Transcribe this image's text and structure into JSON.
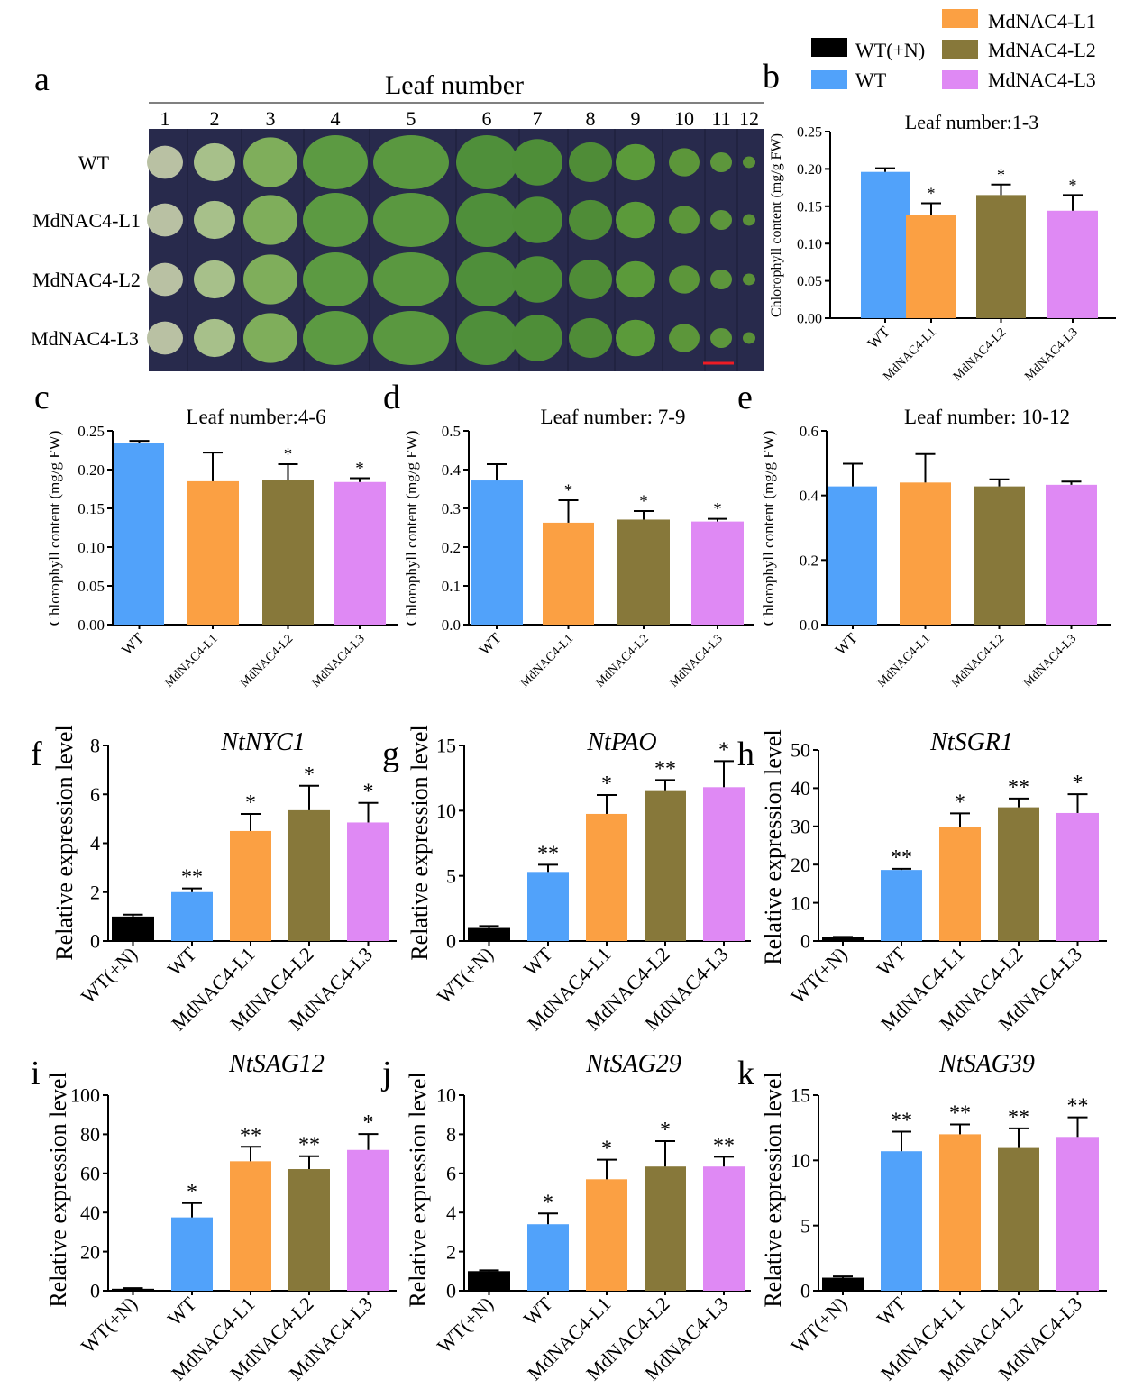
{
  "colors": {
    "WT(+N)": "#000000",
    "WT": "#51a2fa",
    "MdNAC4-L1": "#fba043",
    "MdNAC4-L2": "#87783a",
    "MdNAC4-L3": "#df89f4",
    "scalebar": "#ee1c25",
    "photo_bg": "#282a4c"
  },
  "legend": {
    "entries": [
      "WT(+N)",
      "WT",
      "MdNAC4-L1",
      "MdNAC4-L2",
      "MdNAC4-L3"
    ]
  },
  "photo_panel": {
    "label": "a",
    "title": "Leaf number",
    "leaf_numbers": [
      "1",
      "2",
      "3",
      "4",
      "5",
      "6",
      "7",
      "8",
      "9",
      "10",
      "11",
      "12"
    ],
    "rows": [
      "WT",
      "MdNAC4-L1",
      "MdNAC4-L2",
      "MdNAC4-L3"
    ]
  },
  "chart_data": [
    {
      "panel": "b",
      "type": "bar",
      "title": "Leaf number:1-3",
      "title_italic": false,
      "ylabel": "Chlorophyll content (mg/g FW)",
      "categories": [
        "WT",
        "MdNAC4-L1",
        "MdNAC4-L2",
        "MdNAC4-L3"
      ],
      "values": [
        0.196,
        0.138,
        0.165,
        0.144
      ],
      "errors": [
        0.005,
        0.016,
        0.014,
        0.021
      ],
      "significance": [
        "",
        "*",
        "*",
        "*"
      ],
      "ylim": [
        0,
        0.25
      ],
      "yticks": [
        "0.00",
        "0.05",
        "0.10",
        "0.15",
        "0.20",
        "0.25"
      ],
      "tick_style": "small"
    },
    {
      "panel": "c",
      "type": "bar",
      "title": "Leaf number:4-6",
      "title_italic": false,
      "ylabel": "Chlorophyll content (mg/g FW)",
      "categories": [
        "WT",
        "MdNAC4-L1",
        "MdNAC4-L2",
        "MdNAC4-L3"
      ],
      "values": [
        0.234,
        0.185,
        0.187,
        0.184
      ],
      "errors": [
        0.003,
        0.037,
        0.02,
        0.005
      ],
      "significance": [
        "",
        "",
        "*",
        "*"
      ],
      "ylim": [
        0,
        0.25
      ],
      "yticks": [
        "0.00",
        "0.05",
        "0.10",
        "0.15",
        "0.20",
        "0.25"
      ],
      "tick_style": "small"
    },
    {
      "panel": "d",
      "type": "bar",
      "title": "Leaf number: 7-9",
      "title_italic": false,
      "ylabel": "Chlorophyll content (mg/g FW)",
      "categories": [
        "WT",
        "MdNAC4-L1",
        "MdNAC4-L2",
        "MdNAC4-L3"
      ],
      "values": [
        0.372,
        0.263,
        0.271,
        0.266
      ],
      "errors": [
        0.042,
        0.058,
        0.022,
        0.007
      ],
      "significance": [
        "",
        "*",
        "*",
        "*"
      ],
      "ylim": [
        0,
        0.5
      ],
      "yticks": [
        "0.0",
        "0.1",
        "0.2",
        "0.3",
        "0.4",
        "0.5"
      ],
      "tick_style": "small"
    },
    {
      "panel": "e",
      "type": "bar",
      "title": "Leaf number: 10-12",
      "title_italic": false,
      "ylabel": "Chlorophyll content (mg/g FW)",
      "categories": [
        "WT",
        "MdNAC4-L1",
        "MdNAC4-L2",
        "MdNAC4-L3"
      ],
      "values": [
        0.428,
        0.44,
        0.428,
        0.433
      ],
      "errors": [
        0.07,
        0.088,
        0.022,
        0.01
      ],
      "significance": [
        "",
        "",
        "",
        ""
      ],
      "ylim": [
        0,
        0.6
      ],
      "yticks": [
        "0.0",
        "0.2",
        "0.4",
        "0.6"
      ],
      "tick_style": "small"
    },
    {
      "panel": "f",
      "type": "bar",
      "title": "NtNYC1",
      "title_italic": true,
      "ylabel": "Relative expression level",
      "categories": [
        "WT(+N)",
        "WT",
        "MdNAC4-L1",
        "MdNAC4-L2",
        "MdNAC4-L3"
      ],
      "values": [
        1.0,
        2.0,
        4.5,
        5.35,
        4.85
      ],
      "errors": [
        0.08,
        0.15,
        0.7,
        1.0,
        0.8
      ],
      "significance": [
        "",
        "**",
        "*",
        "*",
        "*"
      ],
      "ylim": [
        0,
        8
      ],
      "yticks": [
        "0",
        "2",
        "4",
        "6",
        "8"
      ],
      "tick_style": "large"
    },
    {
      "panel": "g",
      "type": "bar",
      "title": "NtPAO",
      "title_italic": true,
      "ylabel": "Relative expression level",
      "categories": [
        "WT(+N)",
        "WT",
        "MdNAC4-L1",
        "MdNAC4-L2",
        "MdNAC4-L3"
      ],
      "values": [
        1.0,
        5.3,
        9.75,
        11.5,
        11.8
      ],
      "errors": [
        0.15,
        0.55,
        1.45,
        0.85,
        2.0
      ],
      "significance": [
        "",
        "**",
        "*",
        "**",
        "*"
      ],
      "ylim": [
        0,
        15
      ],
      "yticks": [
        "0",
        "5",
        "10",
        "15"
      ],
      "tick_style": "large"
    },
    {
      "panel": "h",
      "type": "bar",
      "title": "NtSGR1",
      "title_italic": true,
      "ylabel": "Relative expression level",
      "categories": [
        "WT(+N)",
        "WT",
        "MdNAC4-L1",
        "MdNAC4-L2",
        "MdNAC4-L3"
      ],
      "values": [
        1.0,
        18.6,
        29.8,
        35.0,
        33.5
      ],
      "errors": [
        0.1,
        0.3,
        3.6,
        2.3,
        4.9
      ],
      "significance": [
        "",
        "**",
        "*",
        "**",
        "*"
      ],
      "ylim": [
        0,
        50
      ],
      "yticks": [
        "0",
        "10",
        "20",
        "30",
        "40",
        "50"
      ],
      "tick_style": "large"
    },
    {
      "panel": "i",
      "type": "bar",
      "title": "NtSAG12",
      "title_italic": true,
      "ylabel": "Relative expression level",
      "categories": [
        "WT(+N)",
        "WT",
        "MdNAC4-L1",
        "MdNAC4-L2",
        "MdNAC4-L3"
      ],
      "values": [
        1.0,
        37.5,
        66.2,
        62.2,
        72.0
      ],
      "errors": [
        0.3,
        7.3,
        7.4,
        6.6,
        8.1
      ],
      "significance": [
        "",
        "*",
        "**",
        "**",
        "*"
      ],
      "ylim": [
        0,
        100
      ],
      "yticks": [
        "0",
        "20",
        "40",
        "60",
        "80",
        "100"
      ],
      "tick_style": "large"
    },
    {
      "panel": "j",
      "type": "bar",
      "title": "NtSAG29",
      "title_italic": true,
      "ylabel": "Relative expression level",
      "categories": [
        "WT(+N)",
        "WT",
        "MdNAC4-L1",
        "MdNAC4-L2",
        "MdNAC4-L3"
      ],
      "values": [
        1.0,
        3.4,
        5.7,
        6.35,
        6.35
      ],
      "errors": [
        0.04,
        0.55,
        1.0,
        1.3,
        0.5
      ],
      "significance": [
        "",
        "*",
        "*",
        "*",
        "**"
      ],
      "ylim": [
        0,
        10
      ],
      "yticks": [
        "0",
        "2",
        "4",
        "6",
        "8",
        "10"
      ],
      "tick_style": "large"
    },
    {
      "panel": "k",
      "type": "bar",
      "title": "NtSAG39",
      "title_italic": true,
      "ylabel": "Relative expression level",
      "categories": [
        "WT(+N)",
        "WT",
        "MdNAC4-L1",
        "MdNAC4-L2",
        "MdNAC4-L3"
      ],
      "values": [
        1.0,
        10.7,
        12.0,
        10.95,
        11.8
      ],
      "errors": [
        0.1,
        1.5,
        0.75,
        1.5,
        1.5
      ],
      "significance": [
        "",
        "**",
        "**",
        "**",
        "**"
      ],
      "ylim": [
        0,
        15
      ],
      "yticks": [
        "0",
        "5",
        "10",
        "15"
      ],
      "tick_style": "large"
    }
  ]
}
